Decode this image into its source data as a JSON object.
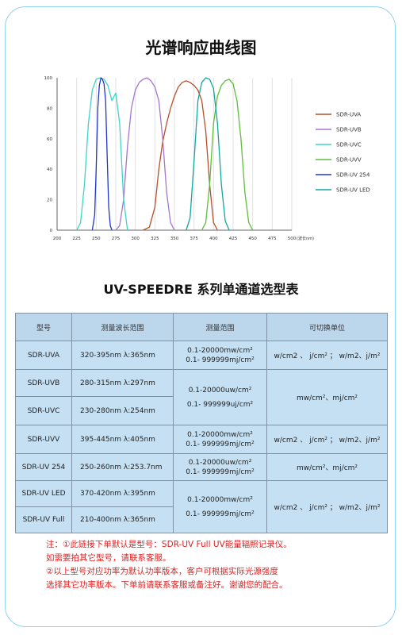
{
  "chart_title": "光谱响应曲线图",
  "chart_data": {
    "type": "line",
    "xlim": [
      200,
      500
    ],
    "ylim": [
      0,
      100
    ],
    "x_ticks": [
      200,
      225,
      250,
      275,
      300,
      325,
      350,
      375,
      400,
      425,
      450,
      475,
      500
    ],
    "x_unit": "波长nm",
    "y_ticks": [
      0,
      20,
      40,
      60,
      80,
      100
    ],
    "grid": "vertical",
    "legend_position": "right",
    "series": [
      {
        "name": "SDR-UVA",
        "color": "#b5502a",
        "x": [
          310,
          318,
          325,
          330,
          335,
          340,
          345,
          350,
          355,
          360,
          365,
          370,
          375,
          380,
          385,
          390,
          395,
          400,
          405
        ],
        "y": [
          0,
          2,
          15,
          40,
          58,
          70,
          80,
          88,
          94,
          97,
          98,
          97,
          95,
          92,
          85,
          65,
          30,
          5,
          0
        ]
      },
      {
        "name": "SDR-UVB",
        "color": "#a675cf",
        "x": [
          275,
          280,
          285,
          290,
          295,
          300,
          305,
          310,
          315,
          320,
          325,
          330,
          335,
          340,
          345,
          350
        ],
        "y": [
          0,
          3,
          20,
          55,
          80,
          92,
          97,
          99,
          100,
          98,
          94,
          85,
          60,
          25,
          5,
          0
        ]
      },
      {
        "name": "SDR-UVC",
        "color": "#3fd3c8",
        "x": [
          225,
          230,
          235,
          240,
          245,
          250,
          255,
          260,
          265,
          270,
          275,
          280,
          285,
          290
        ],
        "y": [
          0,
          5,
          30,
          70,
          92,
          99,
          100,
          99,
          95,
          85,
          90,
          70,
          20,
          0
        ]
      },
      {
        "name": "SDR-UVV",
        "color": "#5fbf3a",
        "x": [
          385,
          390,
          395,
          400,
          405,
          410,
          415,
          420,
          425,
          430,
          435,
          440,
          445,
          450
        ],
        "y": [
          0,
          5,
          30,
          70,
          88,
          95,
          98,
          99,
          96,
          85,
          60,
          25,
          5,
          0
        ]
      },
      {
        "name": "SDR-UV 254",
        "color": "#2235c8",
        "x": [
          245,
          248,
          250,
          252,
          254,
          256,
          258,
          260,
          262,
          264,
          266,
          268,
          270
        ],
        "y": [
          0,
          10,
          40,
          80,
          95,
          100,
          99,
          96,
          85,
          50,
          15,
          3,
          0
        ]
      },
      {
        "name": "SDR-UV LED",
        "color": "#13a6a0",
        "x": [
          365,
          370,
          375,
          380,
          385,
          390,
          395,
          400,
          405,
          410,
          415,
          420
        ],
        "y": [
          0,
          8,
          45,
          85,
          97,
          100,
          99,
          93,
          70,
          30,
          6,
          0
        ]
      }
    ]
  },
  "table_title": "UV-SPEEDRE 系列单通道选型表",
  "table": {
    "headers": [
      "型号",
      "测量波长范围",
      "测量范围",
      "可切换单位"
    ],
    "rows": [
      {
        "model": "SDR-UVA",
        "wavelength": "320-395nm λ:365nm",
        "range": [
          "0.1-20000mw/cm²",
          "0.1- 999999mj/cm²"
        ],
        "unit": "w/cm2 、 j/cm² ； w/m2、j/m²"
      },
      {
        "model": "SDR-UVB",
        "wavelength": "280-315nm λ:297nm"
      },
      {
        "model": "SDR-UVC",
        "wavelength": "230-280nm λ:254nm"
      },
      {
        "model": "SDR-UVV",
        "wavelength": "395-445nm λ:405nm",
        "range": [
          "0.1-20000mw/cm²",
          "0.1- 999999mj/cm²"
        ],
        "unit": "w/cm2 、 j/cm² ； w/m2、j/m²"
      },
      {
        "model": "SDR-UV 254",
        "wavelength": "250-260nm λ:253.7nm",
        "range": [
          "0.1-20000uw/cm²",
          "0.1- 999999mj/cm²"
        ],
        "unit": "mw/cm²、mj/cm²"
      },
      {
        "model": "SDR-UV LED",
        "wavelength": "370-420nm λ:395nm"
      },
      {
        "model": "SDR-UV Full",
        "wavelength": "210-400nm λ:365nm"
      }
    ],
    "uvb_uvc_range": [
      "0.1-20000uw/cm²",
      "0.1- 999999uj/cm²"
    ],
    "uvb_uvc_unit": "mw/cm²、mj/cm²",
    "led_full_range": [
      "0.1-20000mw/cm²",
      "0.1- 999999mj/cm²"
    ],
    "led_full_unit": "w/cm2 、 j/cm² ； w/m2、j/m²"
  },
  "notes": [
    "注：①此链接下单默认是型号：SDR-UV Full UV能量辐照记录仪。",
    "如需要拍其它型号，请联系客服。",
    "②以上型号对应功率为默认功率版本，客户可根据实际光源强度",
    "选择其它功率版本。下单前请联系客服或备注好。谢谢您的配合。"
  ]
}
